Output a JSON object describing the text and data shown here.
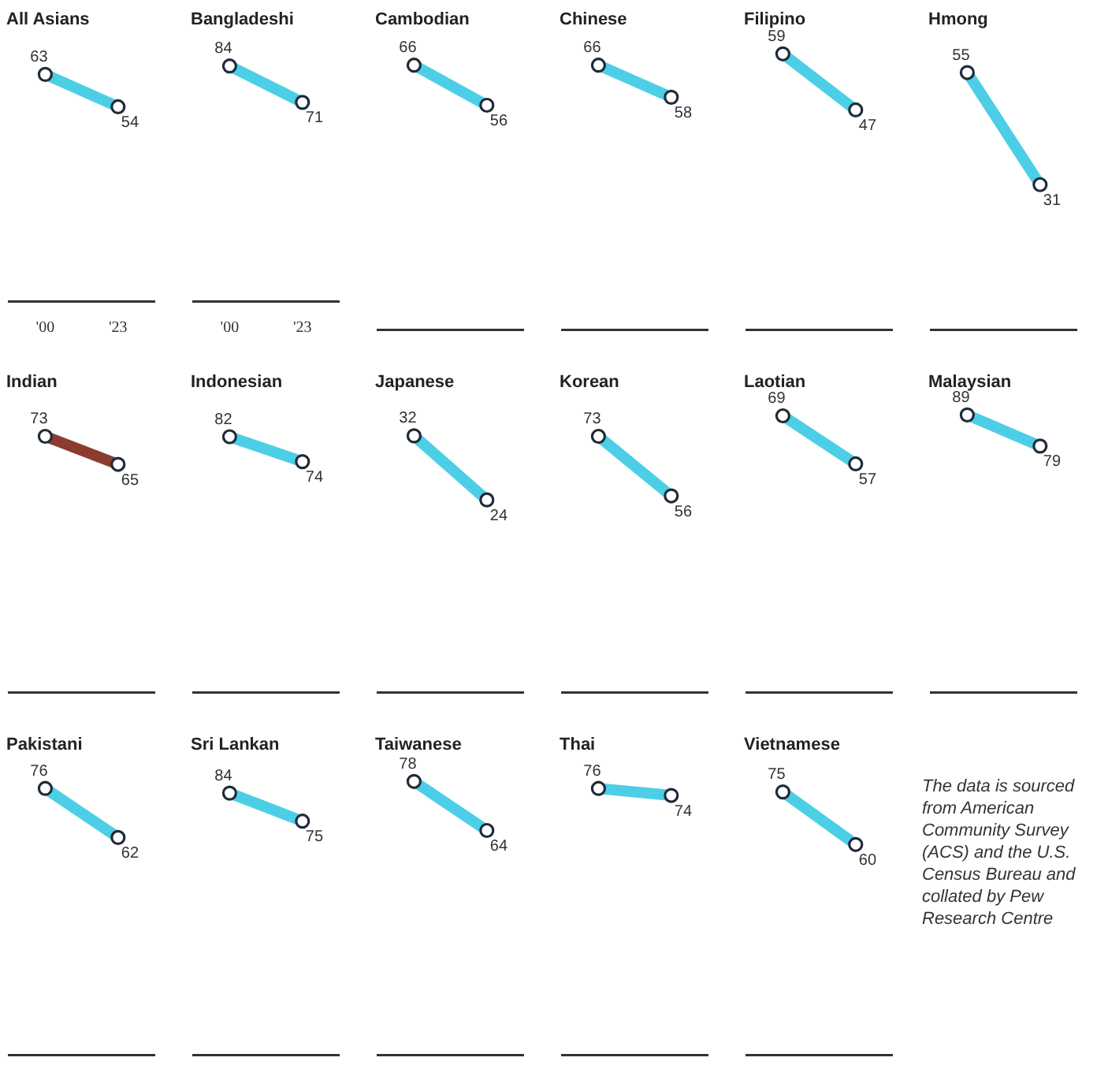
{
  "chart_data": [
    {
      "type": "line",
      "title": "All Asians",
      "categories": [
        "'00",
        "'23"
      ],
      "series": [
        {
          "color": "#4ccfe6",
          "values": [
            63,
            54
          ]
        }
      ],
      "data_labels": true,
      "marker": "circle",
      "legend": false,
      "tick_labels": "x"
    },
    {
      "type": "line",
      "title": "Bangladeshi",
      "categories": [
        "'00",
        "'23"
      ],
      "series": [
        {
          "color": "#4ccfe6",
          "values": [
            84,
            71
          ]
        }
      ],
      "data_labels": true,
      "marker": "circle",
      "legend": false,
      "tick_labels": "x"
    },
    {
      "type": "line",
      "title": "Cambodian",
      "categories": [
        null,
        null
      ],
      "series": [
        {
          "color": "#4ccfe6",
          "values": [
            66,
            56
          ]
        }
      ],
      "data_labels": true,
      "marker": "circle",
      "legend": false,
      "tick_labels": false
    },
    {
      "type": "line",
      "title": "Chinese",
      "categories": [
        null,
        null
      ],
      "series": [
        {
          "color": "#4ccfe6",
          "values": [
            66,
            58
          ]
        }
      ],
      "data_labels": true,
      "marker": "circle",
      "legend": false,
      "tick_labels": false
    },
    {
      "type": "line",
      "title": "Filipino",
      "categories": [
        null,
        null
      ],
      "series": [
        {
          "color": "#4ccfe6",
          "values": [
            59,
            47
          ]
        }
      ],
      "data_labels": true,
      "marker": "circle",
      "legend": false,
      "tick_labels": false
    },
    {
      "type": "line",
      "title": "Hmong",
      "categories": [
        null,
        null
      ],
      "series": [
        {
          "color": "#4ccfe6",
          "values": [
            55,
            31
          ]
        }
      ],
      "data_labels": true,
      "marker": "circle",
      "legend": false,
      "tick_labels": false
    },
    {
      "type": "line",
      "title": "Indian",
      "categories": [
        null,
        null
      ],
      "series": [
        {
          "color": "#8b3b30",
          "values": [
            73,
            65
          ]
        }
      ],
      "data_labels": true,
      "marker": "circle",
      "legend": false,
      "tick_labels": false
    },
    {
      "type": "line",
      "title": "Indonesian",
      "categories": [
        null,
        null
      ],
      "series": [
        {
          "color": "#4ccfe6",
          "values": [
            82,
            74
          ]
        }
      ],
      "data_labels": true,
      "marker": "circle",
      "legend": false,
      "tick_labels": false
    },
    {
      "type": "line",
      "title": "Japanese",
      "categories": [
        null,
        null
      ],
      "series": [
        {
          "color": "#4ccfe6",
          "values": [
            32,
            24
          ]
        }
      ],
      "data_labels": true,
      "marker": "circle",
      "legend": false,
      "tick_labels": false
    },
    {
      "type": "line",
      "title": "Korean",
      "categories": [
        null,
        null
      ],
      "series": [
        {
          "color": "#4ccfe6",
          "values": [
            73,
            56
          ]
        }
      ],
      "data_labels": true,
      "marker": "circle",
      "legend": false,
      "tick_labels": false
    },
    {
      "type": "line",
      "title": "Laotian",
      "categories": [
        null,
        null
      ],
      "series": [
        {
          "color": "#4ccfe6",
          "values": [
            69,
            57
          ]
        }
      ],
      "data_labels": true,
      "marker": "circle",
      "legend": false,
      "tick_labels": false
    },
    {
      "type": "line",
      "title": "Malaysian",
      "categories": [
        null,
        null
      ],
      "series": [
        {
          "color": "#4ccfe6",
          "values": [
            89,
            79
          ]
        }
      ],
      "data_labels": true,
      "marker": "circle",
      "legend": false,
      "tick_labels": false
    },
    {
      "type": "line",
      "title": "Pakistani",
      "categories": [
        null,
        null
      ],
      "series": [
        {
          "color": "#4ccfe6",
          "values": [
            76,
            62
          ]
        }
      ],
      "data_labels": true,
      "marker": "circle",
      "legend": false,
      "tick_labels": false
    },
    {
      "type": "line",
      "title": "Sri Lankan",
      "categories": [
        null,
        null
      ],
      "series": [
        {
          "color": "#4ccfe6",
          "values": [
            84,
            75
          ]
        }
      ],
      "data_labels": true,
      "marker": "circle",
      "legend": false,
      "tick_labels": false
    },
    {
      "type": "line",
      "title": "Taiwanese",
      "categories": [
        null,
        null
      ],
      "series": [
        {
          "color": "#4ccfe6",
          "values": [
            78,
            64
          ]
        }
      ],
      "data_labels": true,
      "marker": "circle",
      "legend": false,
      "tick_labels": false
    },
    {
      "type": "line",
      "title": "Thai",
      "categories": [
        null,
        null
      ],
      "series": [
        {
          "color": "#4ccfe6",
          "values": [
            76,
            74
          ]
        }
      ],
      "data_labels": true,
      "marker": "circle",
      "legend": false,
      "tick_labels": false
    },
    {
      "type": "line",
      "title": "Vietnamese",
      "categories": [
        null,
        null
      ],
      "series": [
        {
          "color": "#4ccfe6",
          "values": [
            75,
            60
          ]
        }
      ],
      "data_labels": true,
      "marker": "circle",
      "legend": false,
      "tick_labels": false
    },
    {
      "type": "other",
      "annotations": [
        "The data is sourced from American Community Survey (ACS) and the U.S. Census Bureau and collated by Pew Research Centre"
      ]
    }
  ]
}
